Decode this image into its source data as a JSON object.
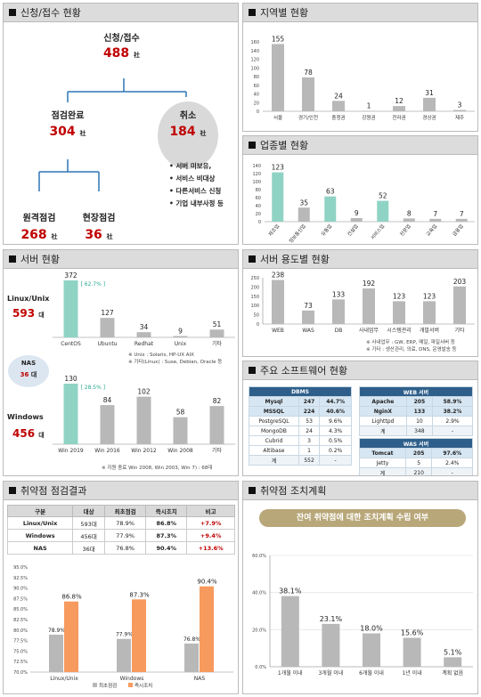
{
  "panels": {
    "apply": {
      "title": "신청/접수 현황"
    },
    "region": {
      "title": "지역별 현황"
    },
    "industry": {
      "title": "업종별 현황"
    },
    "server": {
      "title": "서버 현황"
    },
    "usage": {
      "title": "서버 용도별 현황"
    },
    "software": {
      "title": "주요 소프트웨어 현황"
    },
    "vuln": {
      "title": "취약점 점검결과"
    },
    "action": {
      "title": "취약점 조치계획"
    }
  },
  "apply": {
    "total_label": "신청/접수",
    "total_value": "488",
    "unit": "社",
    "done_label": "점검완료",
    "done_value": "304",
    "cancel_label": "취소",
    "cancel_value": "184",
    "remote_label": "원격점검",
    "remote_value": "268",
    "onsite_label": "현장점검",
    "onsite_value": "36",
    "cancel_reasons": [
      "서버 미보유,",
      "서비스 비대상",
      "다른서비스 신청",
      "기업 내부사정 등"
    ]
  },
  "server": {
    "linux_label": "Linux/Unix",
    "linux_value": "593",
    "unit": "대",
    "nas_label": "NAS",
    "nas_value": "36",
    "windows_label": "Windows",
    "windows_value": "456",
    "note1": "※ Unix : Solaris,  HP-UX AIX",
    "note2": "※ 기타(Linux) : Suse, Debian, Oracle 등",
    "note3": "※ 지원 종료  Win  2008, Win 2003, Win 7) : 68대"
  },
  "usage": {
    "note1": "※ 사내업무 : GW, ERP, 메일, 파일서버 등",
    "note2": "※ 기타 : 생산관리, 의료, DNS, 운영발송 등"
  },
  "software": {
    "dbms_header": "DBMS",
    "dbms": [
      [
        "Mysql",
        "247",
        "44.7%"
      ],
      [
        "MSSQL",
        "224",
        "40.6%"
      ],
      [
        "PostgreSQL",
        "53",
        "9.6%"
      ],
      [
        "MongoDB",
        "24",
        "4.3%"
      ],
      [
        "Cubrid",
        "3",
        "0.5%"
      ],
      [
        "Altibase",
        "1",
        "0.2%"
      ],
      [
        "계",
        "552",
        "-"
      ]
    ],
    "web_header": "WEB 서버",
    "web": [
      [
        "Apache",
        "205",
        "58.9%"
      ],
      [
        "NginX",
        "133",
        "38.2%"
      ],
      [
        "Lighttpd",
        "10",
        "2.9%"
      ],
      [
        "계",
        "348",
        "-"
      ]
    ],
    "was_header": "WAS 서버",
    "was": [
      [
        "Tomcat",
        "205",
        "97.6%"
      ],
      [
        "Jetty",
        "5",
        "2.4%"
      ],
      [
        "계",
        "210",
        "-"
      ]
    ]
  },
  "vuln_table": {
    "headers": [
      "구분",
      "대상",
      "최초점검",
      "즉시조치",
      "비고"
    ],
    "rows": [
      [
        "Linux/Unix",
        "593대",
        "78.9%",
        "86.8%",
        "+7.9%"
      ],
      [
        "Windows",
        "456대",
        "77.9%",
        "87.3%",
        "+9.4%"
      ],
      [
        "NAS",
        "36대",
        "76.8%",
        "90.4%",
        "+13.6%"
      ]
    ]
  },
  "action": {
    "banner": "잔여 취약점에 대한 조치계획 수립 여부"
  },
  "colors": {
    "gray_bar": "#b8b8b8",
    "teal_bar": "#8fd3c4",
    "orange_bar": "#f79a5e",
    "red": "#c00000",
    "banner": "#b8a779"
  },
  "chart_data": [
    {
      "id": "region",
      "type": "bar",
      "categories": [
        "서울",
        "경기/인천",
        "충청권",
        "강원권",
        "전라권",
        "경상권",
        "제주"
      ],
      "values": [
        155,
        78,
        24,
        1,
        12,
        31,
        3
      ],
      "ylim": [
        0,
        160
      ],
      "yticks": [
        0,
        20,
        40,
        60,
        80,
        100,
        120,
        140,
        160
      ]
    },
    {
      "id": "industry",
      "type": "bar",
      "categories": [
        "제조업",
        "정보통신업",
        "유통업",
        "건설업",
        "서비스업",
        "전문업",
        "교육업",
        "금융업"
      ],
      "values": [
        123,
        35,
        63,
        9,
        52,
        8,
        7,
        7
      ],
      "highlight": [
        0,
        2,
        4
      ],
      "ylim": [
        0,
        140
      ],
      "yticks": [
        0,
        20,
        40,
        60,
        80,
        100,
        120,
        140
      ]
    },
    {
      "id": "linux_os",
      "type": "bar",
      "categories": [
        "CentOS",
        "Ubuntu",
        "Redhat",
        "Unix",
        "기타"
      ],
      "values": [
        372,
        127,
        34,
        9,
        51
      ],
      "highlight": [
        0
      ],
      "callout": "[ 62.7% ]"
    },
    {
      "id": "windows_os",
      "type": "bar",
      "categories": [
        "Win 2019",
        "Win 2016",
        "Win 2012",
        "Win 2008",
        "기타"
      ],
      "values": [
        130,
        84,
        102,
        58,
        82
      ],
      "highlight": [
        0
      ],
      "callout": "[ 28.5% ]"
    },
    {
      "id": "usage",
      "type": "bar",
      "categories": [
        "WEB",
        "WAS",
        "DB",
        "사내업무",
        "시스템관리",
        "개발서버",
        "기타"
      ],
      "values": [
        238,
        73,
        133,
        192,
        123,
        123,
        203
      ],
      "ylim": [
        0,
        250
      ],
      "yticks": [
        0,
        50,
        100,
        150,
        200,
        250
      ]
    },
    {
      "id": "vuln",
      "type": "bar",
      "categories": [
        "Linux/Unix",
        "Windows",
        "NAS"
      ],
      "series": [
        {
          "name": "최초점검",
          "values": [
            78.9,
            77.9,
            76.8
          ]
        },
        {
          "name": "즉시조치",
          "values": [
            86.8,
            87.3,
            90.4
          ]
        }
      ],
      "ylim": [
        70,
        95
      ],
      "yticks": [
        70,
        75,
        80,
        85,
        90,
        95
      ]
    },
    {
      "id": "action",
      "type": "bar",
      "categories": [
        "1개월 이내",
        "3개월 이내",
        "6개월 이내",
        "1년 이내",
        "계획 없음"
      ],
      "values": [
        38.1,
        23.1,
        18.0,
        15.6,
        5.1
      ],
      "ylim": [
        0,
        60
      ],
      "yticks": [
        0,
        20,
        40,
        60
      ]
    }
  ]
}
